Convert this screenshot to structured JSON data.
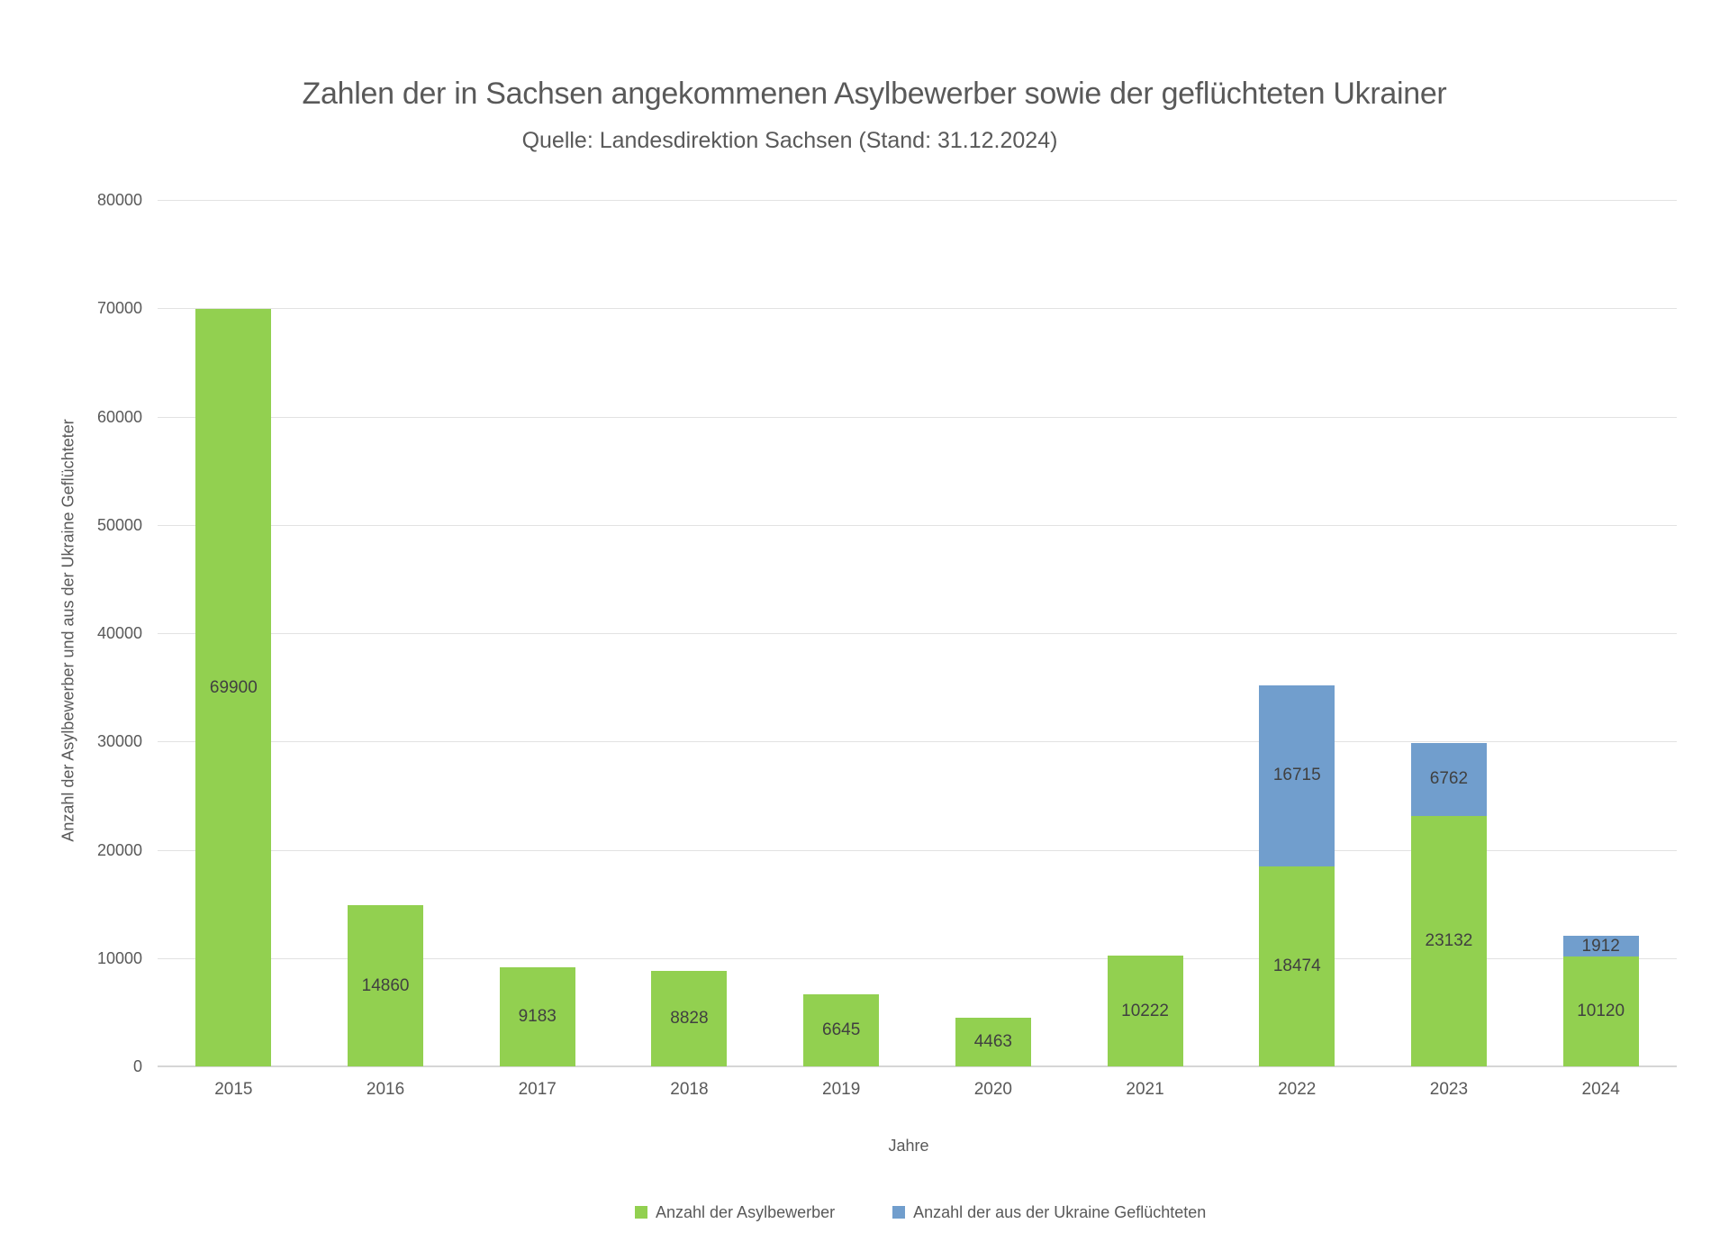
{
  "chart_data": {
    "type": "bar",
    "stacked": true,
    "title": "Zahlen der in Sachsen angekommenen Asylbewerber sowie der geflüchteten Ukrainer",
    "subtitle": "Quelle: Landesdirektion Sachsen (Stand: 31.12.2024)",
    "xlabel": "Jahre",
    "ylabel": "Anzahl der Asylbewerber und aus der Ukraine Geflüchteter",
    "ylim": [
      0,
      80000
    ],
    "ytick_step": 10000,
    "yticks": [
      0,
      10000,
      20000,
      30000,
      40000,
      50000,
      60000,
      70000,
      80000
    ],
    "grid": "horizontal",
    "legend_position": "bottom",
    "categories": [
      "2015",
      "2016",
      "2017",
      "2018",
      "2019",
      "2020",
      "2021",
      "2022",
      "2023",
      "2024"
    ],
    "series": [
      {
        "name": "Anzahl der Asylbewerber",
        "color": "#92D050",
        "values": [
          69900,
          14860,
          9183,
          8828,
          6645,
          4463,
          10222,
          18474,
          23132,
          10120
        ]
      },
      {
        "name": "Anzahl der aus der Ukraine Geflüchteten",
        "color": "#719ECD",
        "values": [
          null,
          null,
          null,
          null,
          null,
          null,
          null,
          16715,
          6762,
          1912
        ]
      }
    ],
    "colors": {
      "text": "#595959",
      "data_label": "#404040",
      "gridline": "#E2E2E2",
      "axis_line": "#D6D6D6"
    }
  }
}
